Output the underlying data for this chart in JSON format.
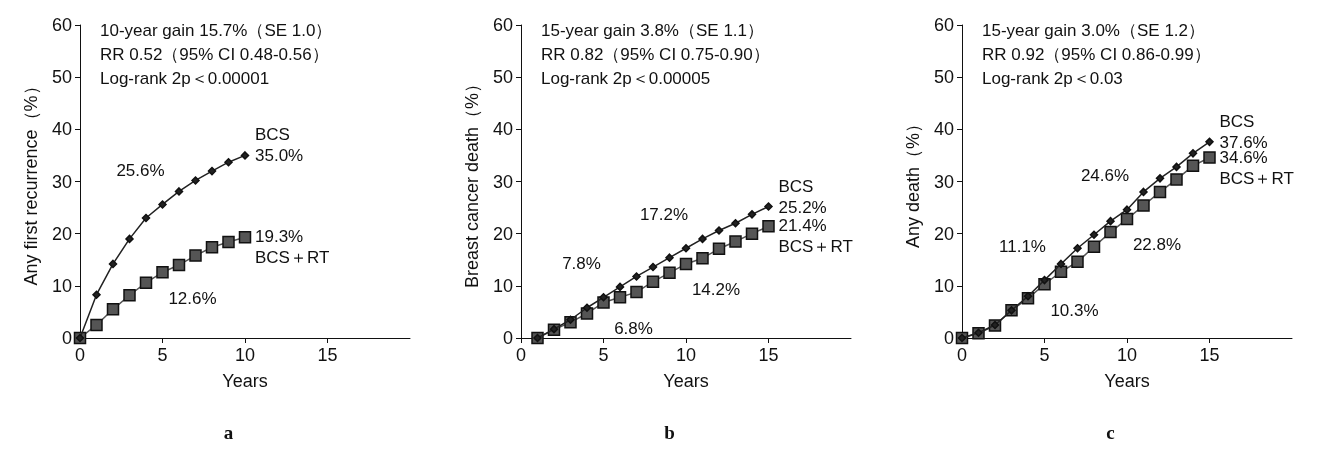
{
  "chart_data": [
    {
      "type": "line",
      "title": "a",
      "xlabel": "Years",
      "ylabel": "Any first recurrence（%）",
      "annotations": [
        "10-year gain 15.7%（SE 1.0）",
        "RR 0.52（95% CI 0.48-0.56）",
        "Log-rank 2p＜0.00001"
      ],
      "xlim": [
        0,
        20
      ],
      "xticks": [
        0,
        5,
        10,
        15
      ],
      "ylim": [
        0,
        60
      ],
      "yticks": [
        0,
        10,
        20,
        30,
        40,
        50,
        60
      ],
      "series": [
        {
          "name": "BCS",
          "color": "#222222",
          "marker": "diamond",
          "x": [
            0,
            1,
            2,
            3,
            4,
            5,
            6,
            7,
            8,
            9,
            10
          ],
          "values": [
            0,
            8.3,
            14.2,
            19,
            23,
            25.6,
            28.1,
            30.2,
            32,
            33.7,
            35.0
          ],
          "value_labels": [
            null,
            null,
            null,
            null,
            null,
            "25.6%",
            null,
            null,
            null,
            null,
            "35.0%"
          ]
        },
        {
          "name": "BCS＋RT",
          "color": "#555555",
          "marker": "square",
          "x": [
            0,
            1,
            2,
            3,
            4,
            5,
            6,
            7,
            8,
            9,
            10
          ],
          "values": [
            0,
            2.5,
            5.5,
            8.2,
            10.6,
            12.6,
            14,
            15.8,
            17.4,
            18.4,
            19.3
          ],
          "value_labels": [
            null,
            null,
            null,
            null,
            null,
            "12.6%",
            null,
            null,
            null,
            null,
            "19.3%"
          ]
        }
      ]
    },
    {
      "type": "line",
      "title": "b",
      "xlabel": "Years",
      "ylabel": "Breast cancer death（%）",
      "annotations": [
        "15-year gain 3.8%（SE 1.1）",
        "RR 0.82（95% CI 0.75-0.90）",
        "Log-rank 2p＜0.00005"
      ],
      "xlim": [
        0,
        20
      ],
      "xticks": [
        0,
        5,
        10,
        15
      ],
      "ylim": [
        0,
        60
      ],
      "yticks": [
        0,
        10,
        20,
        30,
        40,
        50,
        60
      ],
      "series": [
        {
          "name": "BCS",
          "color": "#222222",
          "marker": "diamond",
          "x": [
            1,
            2,
            3,
            4,
            5,
            6,
            7,
            8,
            9,
            10,
            11,
            12,
            13,
            14,
            15
          ],
          "values": [
            0,
            1.7,
            3.5,
            5.8,
            7.8,
            9.8,
            11.8,
            13.6,
            15.4,
            17.2,
            19,
            20.6,
            22,
            23.7,
            25.2
          ],
          "value_labels": [
            null,
            null,
            null,
            null,
            "7.8%",
            null,
            null,
            null,
            null,
            "17.2%",
            null,
            null,
            null,
            null,
            "25.2%"
          ]
        },
        {
          "name": "BCS＋RT",
          "color": "#555555",
          "marker": "square",
          "x": [
            1,
            2,
            3,
            4,
            5,
            6,
            7,
            8,
            9,
            10,
            11,
            12,
            13,
            14,
            15
          ],
          "values": [
            0,
            1.6,
            3.0,
            4.7,
            6.8,
            7.8,
            8.8,
            10.8,
            12.5,
            14.2,
            15.3,
            17.1,
            18.5,
            20.0,
            21.4
          ],
          "value_labels": [
            null,
            null,
            null,
            null,
            "6.8%",
            null,
            null,
            null,
            null,
            "14.2%",
            null,
            null,
            null,
            null,
            "21.4%"
          ]
        }
      ]
    },
    {
      "type": "line",
      "title": "c",
      "xlabel": "Years",
      "ylabel": "Any death（%）",
      "annotations": [
        "15-year gain 3.0%（SE 1.2）",
        "RR 0.92（95% CI 0.86-0.99）",
        "Log-rank 2p＜0.03"
      ],
      "xlim": [
        0,
        20
      ],
      "xticks": [
        0,
        5,
        10,
        15
      ],
      "ylim": [
        0,
        60
      ],
      "yticks": [
        0,
        10,
        20,
        30,
        40,
        50,
        60
      ],
      "series": [
        {
          "name": "BCS",
          "color": "#222222",
          "marker": "diamond",
          "x": [
            0,
            1,
            2,
            3,
            4,
            5,
            6,
            7,
            8,
            9,
            10,
            11,
            12,
            13,
            14,
            15
          ],
          "values": [
            0,
            1,
            2.5,
            5.3,
            8,
            11.1,
            14.2,
            17.2,
            19.8,
            22.4,
            24.6,
            28,
            30.6,
            32.8,
            35.4,
            37.6
          ],
          "value_labels": [
            null,
            null,
            null,
            null,
            null,
            "11.1%",
            null,
            null,
            null,
            null,
            "24.6%",
            null,
            null,
            null,
            null,
            "37.6%"
          ]
        },
        {
          "name": "BCS＋RT",
          "color": "#555555",
          "marker": "square",
          "x": [
            0,
            1,
            2,
            3,
            4,
            5,
            6,
            7,
            8,
            9,
            10,
            11,
            12,
            13,
            14,
            15
          ],
          "values": [
            0,
            0.9,
            2.4,
            5.3,
            7.6,
            10.3,
            12.7,
            14.6,
            17.5,
            20.3,
            22.8,
            25.4,
            28,
            30.4,
            33,
            34.6
          ],
          "value_labels": [
            null,
            null,
            null,
            null,
            null,
            "10.3%",
            null,
            null,
            null,
            null,
            "22.8%",
            null,
            null,
            null,
            null,
            "34.6%"
          ]
        }
      ]
    }
  ]
}
